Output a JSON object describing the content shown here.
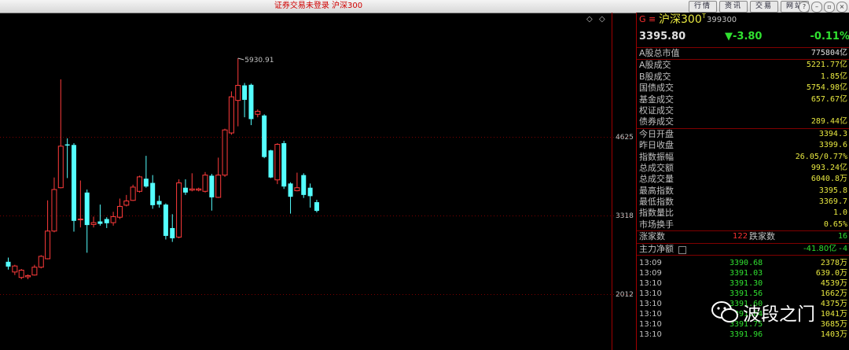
{
  "window": {
    "title": "证券交易未登录  沪深300",
    "buttons": [
      "行情",
      "资讯",
      "交易",
      "网站"
    ],
    "controls": [
      "?",
      "–",
      "▫",
      "×"
    ]
  },
  "chart": {
    "price_axis_labels": [
      "4625",
      "3318",
      "2012"
    ],
    "high_marker": "5930.91"
  },
  "chart_data": {
    "type": "candlestick",
    "y_ticks": [
      4625,
      3318,
      2012
    ],
    "annotations": [
      "5930.91"
    ],
    "candles": [
      {
        "o": 2550,
        "c": 2470,
        "h": 2620,
        "l": 2420
      },
      {
        "o": 2380,
        "c": 2480,
        "h": 2500,
        "l": 2330
      },
      {
        "o": 2290,
        "c": 2410,
        "h": 2430,
        "l": 2260
      },
      {
        "o": 2300,
        "c": 2320,
        "h": 2340,
        "l": 2260
      },
      {
        "o": 2330,
        "c": 2460,
        "h": 2500,
        "l": 2320
      },
      {
        "o": 2460,
        "c": 2640,
        "h": 2660,
        "l": 2440
      },
      {
        "o": 2600,
        "c": 3060,
        "h": 3570,
        "l": 2590
      },
      {
        "o": 3060,
        "c": 3750,
        "h": 3950,
        "l": 3040
      },
      {
        "o": 3780,
        "c": 4470,
        "h": 5580,
        "l": 3770
      },
      {
        "o": 4500,
        "c": 4480,
        "h": 4600,
        "l": 3940
      },
      {
        "o": 4490,
        "c": 3230,
        "h": 4520,
        "l": 3050
      },
      {
        "o": 3250,
        "c": 3260,
        "h": 3900,
        "l": 3120
      },
      {
        "o": 3700,
        "c": 3160,
        "h": 3750,
        "l": 2700
      },
      {
        "o": 3170,
        "c": 3200,
        "h": 3300,
        "l": 3120
      },
      {
        "o": 3220,
        "c": 3180,
        "h": 3500,
        "l": 3150
      },
      {
        "o": 3260,
        "c": 3190,
        "h": 3290,
        "l": 3110
      },
      {
        "o": 3200,
        "c": 3300,
        "h": 3380,
        "l": 3150
      },
      {
        "o": 3290,
        "c": 3470,
        "h": 3600,
        "l": 3260
      },
      {
        "o": 3490,
        "c": 3560,
        "h": 3660,
        "l": 3470
      },
      {
        "o": 3570,
        "c": 3790,
        "h": 3830,
        "l": 3560
      },
      {
        "o": 3720,
        "c": 3960,
        "h": 3980,
        "l": 3700
      },
      {
        "o": 3930,
        "c": 3800,
        "h": 4310,
        "l": 3780
      },
      {
        "o": 3860,
        "c": 3490,
        "h": 3990,
        "l": 3430
      },
      {
        "o": 3560,
        "c": 3500,
        "h": 3650,
        "l": 3450
      },
      {
        "o": 3500,
        "c": 2980,
        "h": 3520,
        "l": 2920
      },
      {
        "o": 3110,
        "c": 2940,
        "h": 3340,
        "l": 2880
      },
      {
        "o": 2960,
        "c": 3860,
        "h": 3920,
        "l": 2940
      },
      {
        "o": 3780,
        "c": 3700,
        "h": 3920,
        "l": 3660
      },
      {
        "o": 3740,
        "c": 3760,
        "h": 4020,
        "l": 3720
      },
      {
        "o": 3740,
        "c": 3760,
        "h": 3780,
        "l": 3720
      },
      {
        "o": 3720,
        "c": 3990,
        "h": 4040,
        "l": 3700
      },
      {
        "o": 3980,
        "c": 3620,
        "h": 4010,
        "l": 3400
      },
      {
        "o": 3620,
        "c": 3990,
        "h": 4280,
        "l": 3610
      },
      {
        "o": 3990,
        "c": 4740,
        "h": 4760,
        "l": 3960
      },
      {
        "o": 4690,
        "c": 5290,
        "h": 5380,
        "l": 4660
      },
      {
        "o": 5230,
        "c": 5480,
        "h": 5930.91,
        "l": 4800
      },
      {
        "o": 5480,
        "c": 5240,
        "h": 5520,
        "l": 4950
      },
      {
        "o": 5490,
        "c": 4920,
        "h": 5510,
        "l": 4820
      },
      {
        "o": 5000,
        "c": 5050,
        "h": 5080,
        "l": 4950
      },
      {
        "o": 4980,
        "c": 4290,
        "h": 5000,
        "l": 4270
      },
      {
        "o": 4400,
        "c": 3950,
        "h": 4410,
        "l": 3940
      },
      {
        "o": 3910,
        "c": 4500,
        "h": 4520,
        "l": 3840
      },
      {
        "o": 4520,
        "c": 3800,
        "h": 4560,
        "l": 3760
      },
      {
        "o": 3850,
        "c": 3630,
        "h": 3870,
        "l": 3350
      },
      {
        "o": 3730,
        "c": 3780,
        "h": 4030,
        "l": 3720
      },
      {
        "o": 3990,
        "c": 3660,
        "h": 4020,
        "l": 3610
      },
      {
        "o": 3780,
        "c": 3640,
        "h": 3850,
        "l": 3450
      },
      {
        "o": 3540,
        "c": 3395.8,
        "h": 3580,
        "l": 3369.7
      }
    ]
  },
  "quote": {
    "header_prefix": "G ≡",
    "name": "沪深300",
    "superscript": "T",
    "code": "399300",
    "price": "3395.80",
    "change": "▼-3.80",
    "change_pct": "-0.11%"
  },
  "market_value": {
    "label": "A股总市值",
    "value": "775804亿"
  },
  "turnover_rows": [
    {
      "label": "A股成交",
      "value": "5221.77亿"
    },
    {
      "label": "B股成交",
      "value": "1.85亿"
    },
    {
      "label": "国债成交",
      "value": "5754.98亿"
    },
    {
      "label": "基金成交",
      "value": "657.67亿"
    },
    {
      "label": "权证成交",
      "value": ""
    },
    {
      "label": "债券成交",
      "value": "289.44亿"
    }
  ],
  "index_rows": [
    {
      "label": "今日开盘",
      "value": "3394.3"
    },
    {
      "label": "昨日收盘",
      "value": "3399.6"
    },
    {
      "label": "指数振幅",
      "value": "26.05/0.77%"
    },
    {
      "label": "总成交额",
      "value": "993.24亿"
    },
    {
      "label": "总成交量",
      "value": "6040.8万"
    },
    {
      "label": "最高指数",
      "value": "3395.8"
    },
    {
      "label": "最低指数",
      "value": "3369.7"
    },
    {
      "label": "指数量比",
      "value": "1.0"
    },
    {
      "label": "市场换手",
      "value": "0.65%"
    }
  ],
  "breadth": {
    "up_label": "涨家数",
    "up_value": "122",
    "down_label": "跌家数",
    "down_value": "16"
  },
  "main_flow": {
    "label": "主力净额",
    "value": "-41.80亿",
    "value2": "-4"
  },
  "ticks": [
    {
      "time": "13:09",
      "price": "3390.68",
      "vol": "2378万"
    },
    {
      "time": "13:09",
      "price": "3391.03",
      "vol": "639.0万"
    },
    {
      "time": "13:10",
      "price": "3391.30",
      "vol": "4539万"
    },
    {
      "time": "13:10",
      "price": "3391.56",
      "vol": "1662万"
    },
    {
      "time": "13:10",
      "price": "3391.60",
      "vol": "4375万"
    },
    {
      "time": "13:10",
      "price": "3391.64",
      "vol": "1041万"
    },
    {
      "time": "13:10",
      "price": "3391.75",
      "vol": "3685万"
    },
    {
      "time": "13:10",
      "price": "3391.96",
      "vol": "1403万"
    }
  ],
  "watermark": "波段之门"
}
